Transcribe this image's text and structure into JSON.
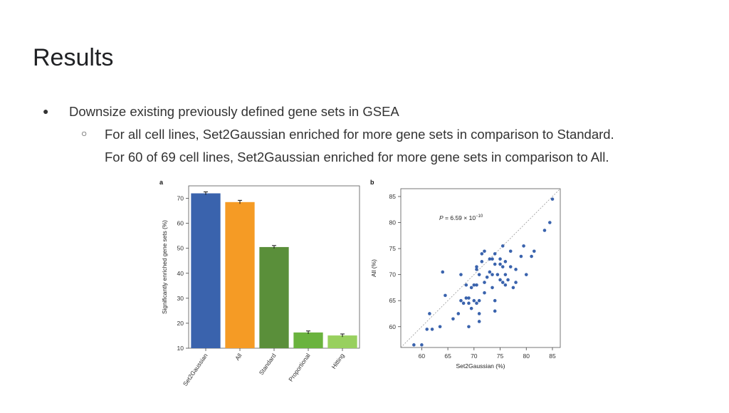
{
  "slide": {
    "title": "Results",
    "bullets": [
      {
        "marker": "●",
        "text": "Downsize existing previously defined gene sets in GSEA"
      },
      {
        "marker": "○",
        "text": "For all cell lines, Set2Gaussian enriched for more gene sets in comparison to Standard."
      },
      {
        "marker": "",
        "text": "For 60 of 69 cell lines, Set2Gaussian enriched for more gene sets in comparison to All."
      }
    ]
  },
  "chart_data": [
    {
      "panel_label": "a",
      "type": "bar",
      "categories": [
        "Set2Gaussian",
        "All",
        "Standard",
        "Proportional",
        "Hitting"
      ],
      "values": [
        72,
        68.5,
        50.5,
        16.3,
        15.1
      ],
      "errors": [
        0.6,
        0.7,
        0.6,
        0.6,
        0.6
      ],
      "colors": [
        "#3a63ad",
        "#f59b25",
        "#5a8f3a",
        "#6ab33e",
        "#98d05e"
      ],
      "xlabel": "",
      "ylabel": "Significantly enriched gene sets (%)",
      "ylim": [
        10,
        75
      ],
      "yticks": [
        10,
        20,
        30,
        40,
        50,
        60,
        70
      ],
      "grid": false
    },
    {
      "panel_label": "b",
      "type": "scatter",
      "xlabel": "Set2Gaussian (%)",
      "ylabel": "All (%)",
      "xlim": [
        56,
        86.5
      ],
      "ylim": [
        56,
        86.5
      ],
      "xticks": [
        60,
        65,
        70,
        75,
        80,
        85
      ],
      "yticks": [
        60,
        65,
        70,
        75,
        80,
        85
      ],
      "annotation": {
        "prefix": "P",
        "text": " = 6.59 × 10",
        "exponent": "−10"
      },
      "diagonal": true,
      "point_color": "#3a63ad",
      "points": [
        [
          58.5,
          56.5
        ],
        [
          60,
          56.5
        ],
        [
          61,
          59.5
        ],
        [
          61.5,
          62.5
        ],
        [
          62,
          59.5
        ],
        [
          63.5,
          60
        ],
        [
          64,
          70.5
        ],
        [
          64.5,
          66
        ],
        [
          66,
          61.5
        ],
        [
          67,
          62.5
        ],
        [
          67.5,
          65
        ],
        [
          67.5,
          70
        ],
        [
          68,
          64.5
        ],
        [
          68.5,
          65.5
        ],
        [
          68.5,
          68
        ],
        [
          69,
          60
        ],
        [
          69,
          64.5
        ],
        [
          69,
          65.5
        ],
        [
          69.5,
          67.5
        ],
        [
          69.5,
          63.5
        ],
        [
          70,
          65
        ],
        [
          70,
          68
        ],
        [
          70.5,
          64.5
        ],
        [
          70.5,
          71
        ],
        [
          70.5,
          71.5
        ],
        [
          70.5,
          68
        ],
        [
          71,
          61
        ],
        [
          71,
          62.5
        ],
        [
          71,
          65
        ],
        [
          71,
          70
        ],
        [
          71.5,
          72.5
        ],
        [
          71.5,
          74
        ],
        [
          72,
          74.5
        ],
        [
          72,
          68.5
        ],
        [
          72,
          66.5
        ],
        [
          72.5,
          69.5
        ],
        [
          73,
          73
        ],
        [
          73,
          70.5
        ],
        [
          73.5,
          73
        ],
        [
          73.5,
          67.5
        ],
        [
          73.5,
          70
        ],
        [
          74,
          74
        ],
        [
          74,
          72
        ],
        [
          74,
          65
        ],
        [
          74,
          63
        ],
        [
          74.5,
          70
        ],
        [
          75,
          73
        ],
        [
          75,
          72
        ],
        [
          75,
          69
        ],
        [
          75.5,
          75.5
        ],
        [
          75.5,
          71.5
        ],
        [
          75.5,
          68.5
        ],
        [
          76,
          72.5
        ],
        [
          76,
          70
        ],
        [
          76,
          68
        ],
        [
          76.5,
          69
        ],
        [
          77,
          74.5
        ],
        [
          77,
          71.5
        ],
        [
          77.5,
          67.5
        ],
        [
          78,
          71
        ],
        [
          78,
          68.5
        ],
        [
          79,
          73.5
        ],
        [
          79.5,
          75.5
        ],
        [
          80,
          70
        ],
        [
          81,
          73.5
        ],
        [
          81.5,
          74.5
        ],
        [
          83.5,
          78.5
        ],
        [
          84.5,
          80
        ],
        [
          85,
          84.5
        ]
      ]
    }
  ]
}
